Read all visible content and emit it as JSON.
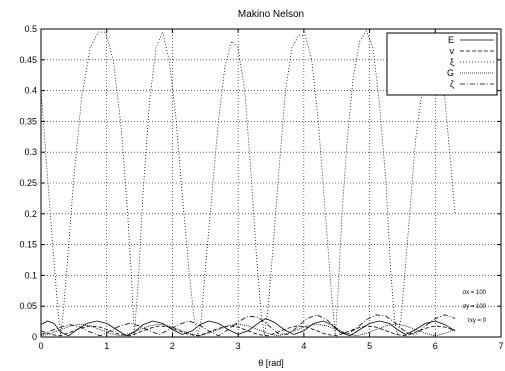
{
  "chart_data": {
    "type": "line",
    "title": "Makino  Nelson",
    "xlabel": "θ [rad]",
    "ylabel": "",
    "xlim": [
      0,
      7
    ],
    "ylim": [
      0,
      0.5
    ],
    "xticks": [
      "0",
      "1",
      "2",
      "3",
      "4",
      "5",
      "6",
      "7"
    ],
    "yticks": [
      "0",
      "0.05",
      "0.1",
      "0.15",
      "0.2",
      "0.25",
      "0.3",
      "0.35",
      "0.4",
      "0.45",
      "0.5"
    ],
    "grid": true,
    "legend_position": "top-right",
    "legend": [
      "E",
      "ν",
      "ξ",
      "G",
      "ζ"
    ],
    "annotations": [
      "σx = 100",
      "σy = 100",
      "τxy = 0"
    ],
    "series": [
      {
        "name": "E",
        "dash": "solid",
        "x": [
          0.0,
          0.1,
          0.2,
          0.3,
          0.42,
          0.55,
          0.7,
          0.85,
          1.0,
          1.15,
          1.3,
          1.42,
          1.55,
          1.7,
          1.85,
          2.0,
          2.15,
          2.3,
          2.42,
          2.55,
          2.7,
          2.85,
          3.0,
          3.15,
          3.3,
          3.42,
          3.55,
          3.7,
          3.85,
          4.0,
          4.15,
          4.3,
          4.42,
          4.55,
          4.7,
          4.85,
          5.0,
          5.15,
          5.3,
          5.42,
          5.55,
          5.7,
          5.85,
          6.0,
          6.15,
          6.3
        ],
        "y": [
          0.02,
          0.026,
          0.022,
          0.008,
          0.002,
          0.012,
          0.022,
          0.026,
          0.022,
          0.012,
          0.002,
          0.008,
          0.02,
          0.026,
          0.022,
          0.012,
          0.004,
          0.01,
          0.02,
          0.026,
          0.022,
          0.012,
          0.004,
          0.01,
          0.022,
          0.03,
          0.024,
          0.012,
          0.004,
          0.01,
          0.022,
          0.026,
          0.02,
          0.008,
          0.002,
          0.012,
          0.022,
          0.026,
          0.022,
          0.012,
          0.004,
          0.012,
          0.022,
          0.026,
          0.02,
          0.01
        ]
      },
      {
        "name": "ν",
        "dash": "dashed",
        "x": [
          0.0,
          0.15,
          0.3,
          0.45,
          0.6,
          0.75,
          0.9,
          1.05,
          1.2,
          1.35,
          1.5,
          1.65,
          1.8,
          1.95,
          2.1,
          2.25,
          2.4,
          2.55,
          2.7,
          2.85,
          3.0,
          3.15,
          3.3,
          3.45,
          3.6,
          3.75,
          3.9,
          4.05,
          4.2,
          4.35,
          4.5,
          4.65,
          4.8,
          4.95,
          5.1,
          5.25,
          5.4,
          5.55,
          5.7,
          5.85,
          6.0,
          6.15,
          6.3
        ],
        "y": [
          0.01,
          0.004,
          0.002,
          0.008,
          0.014,
          0.018,
          0.016,
          0.01,
          0.004,
          0.002,
          0.008,
          0.014,
          0.018,
          0.016,
          0.01,
          0.004,
          0.002,
          0.008,
          0.014,
          0.018,
          0.016,
          0.01,
          0.004,
          0.002,
          0.008,
          0.014,
          0.018,
          0.016,
          0.01,
          0.004,
          0.002,
          0.008,
          0.014,
          0.018,
          0.016,
          0.01,
          0.004,
          0.002,
          0.008,
          0.014,
          0.018,
          0.016,
          0.01
        ]
      },
      {
        "name": "ξ",
        "dash": "dotted",
        "x": [
          0.0,
          0.05,
          0.12,
          0.2,
          0.27,
          0.3,
          0.33,
          0.4,
          0.5,
          0.62,
          0.75,
          0.87,
          0.98,
          1.1,
          1.22,
          1.32,
          1.38,
          1.42,
          1.48,
          1.55,
          1.65,
          1.75,
          1.85,
          1.95,
          2.05,
          2.15,
          2.25,
          2.33,
          2.39,
          2.44,
          2.5,
          2.6,
          2.7,
          2.8,
          2.9,
          3.0,
          3.1,
          3.2,
          3.28,
          3.35,
          3.4,
          3.45,
          3.52,
          3.62,
          3.72,
          3.82,
          3.92,
          4.02,
          4.12,
          4.22,
          4.32,
          4.42,
          4.48,
          4.52,
          4.58,
          4.66,
          4.75,
          4.85,
          4.95,
          5.05,
          5.15,
          5.25,
          5.32,
          5.38,
          5.42,
          5.48,
          5.58,
          5.7,
          5.85,
          5.98,
          6.1,
          6.22,
          6.3
        ],
        "y": [
          0.4,
          0.33,
          0.23,
          0.12,
          0.03,
          0.003,
          0.03,
          0.12,
          0.26,
          0.39,
          0.47,
          0.495,
          0.495,
          0.45,
          0.34,
          0.2,
          0.09,
          0.003,
          0.09,
          0.23,
          0.38,
          0.47,
          0.495,
          0.45,
          0.36,
          0.23,
          0.11,
          0.03,
          0.003,
          0.03,
          0.11,
          0.23,
          0.35,
          0.44,
          0.48,
          0.47,
          0.4,
          0.26,
          0.13,
          0.04,
          0.003,
          0.04,
          0.13,
          0.27,
          0.4,
          0.47,
          0.49,
          0.49,
          0.45,
          0.35,
          0.21,
          0.07,
          0.003,
          0.07,
          0.2,
          0.32,
          0.42,
          0.48,
          0.497,
          0.47,
          0.38,
          0.25,
          0.11,
          0.03,
          0.003,
          0.03,
          0.16,
          0.32,
          0.44,
          0.48,
          0.44,
          0.3,
          0.2
        ]
      },
      {
        "name": "G",
        "dash": "dense-dot",
        "x": [
          0.0,
          0.15,
          0.3,
          0.45,
          0.6,
          0.75,
          0.9,
          1.05,
          1.2,
          1.35,
          1.5,
          1.65,
          1.8,
          1.95,
          2.1,
          2.25,
          2.4,
          2.55,
          2.7,
          2.85,
          3.0,
          3.15,
          3.3,
          3.45,
          3.6,
          3.75,
          3.9,
          4.05,
          4.2,
          4.35,
          4.5,
          4.65,
          4.8,
          4.95,
          5.1,
          5.25,
          5.4,
          5.55,
          5.7,
          5.85,
          6.0,
          6.15,
          6.3
        ],
        "y": [
          0.002,
          0.006,
          0.012,
          0.018,
          0.021,
          0.018,
          0.012,
          0.006,
          0.002,
          0.006,
          0.012,
          0.018,
          0.021,
          0.018,
          0.012,
          0.006,
          0.002,
          0.006,
          0.012,
          0.018,
          0.021,
          0.018,
          0.012,
          0.006,
          0.002,
          0.006,
          0.012,
          0.018,
          0.021,
          0.018,
          0.012,
          0.006,
          0.002,
          0.006,
          0.012,
          0.018,
          0.021,
          0.018,
          0.012,
          0.006,
          0.002,
          0.006,
          0.012
        ]
      },
      {
        "name": "ζ",
        "dash": "dash-dot",
        "x": [
          0.0,
          0.15,
          0.3,
          0.45,
          0.6,
          0.75,
          0.9,
          1.05,
          1.2,
          1.35,
          1.5,
          1.65,
          1.8,
          1.95,
          2.1,
          2.25,
          2.4,
          2.55,
          2.7,
          2.85,
          3.0,
          3.15,
          3.3,
          3.45,
          3.6,
          3.75,
          3.9,
          4.05,
          4.2,
          4.35,
          4.5,
          4.65,
          4.8,
          4.95,
          5.1,
          5.25,
          5.4,
          5.55,
          5.7,
          5.85,
          6.0,
          6.15,
          6.3
        ],
        "y": [
          0.004,
          0.01,
          0.016,
          0.02,
          0.016,
          0.008,
          0.002,
          0.01,
          0.018,
          0.022,
          0.018,
          0.01,
          0.004,
          0.012,
          0.02,
          0.026,
          0.02,
          0.01,
          0.002,
          0.012,
          0.024,
          0.034,
          0.032,
          0.02,
          0.006,
          0.004,
          0.016,
          0.03,
          0.036,
          0.028,
          0.014,
          0.004,
          0.014,
          0.028,
          0.036,
          0.034,
          0.022,
          0.008,
          0.004,
          0.018,
          0.03,
          0.036,
          0.03
        ]
      }
    ]
  }
}
